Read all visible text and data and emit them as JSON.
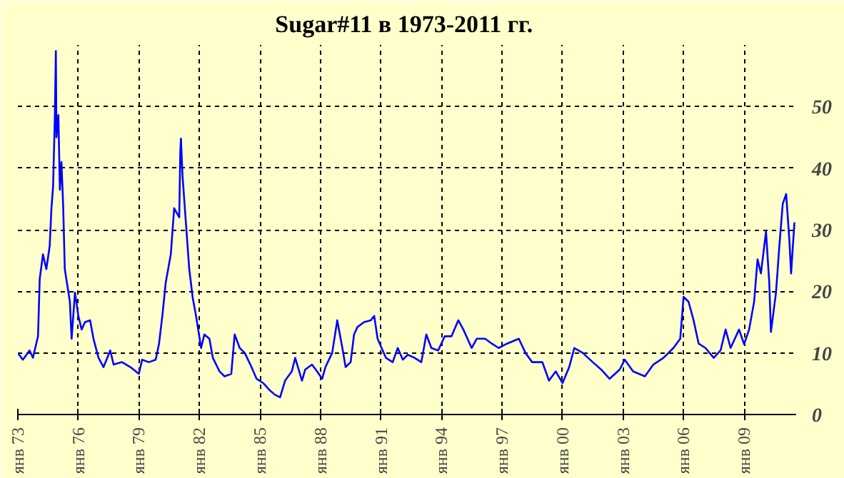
{
  "chart_data": {
    "type": "line",
    "title": "Sugar#11  в 1973-2011 гг.",
    "x": [
      "1973-01",
      "1973-04",
      "1973-08",
      "1973-10",
      "1974-01",
      "1974-02",
      "1974-04",
      "1974-06",
      "1974-08",
      "1974-09",
      "1974-10",
      "1974-11-01",
      "1974-11-20",
      "1974-12",
      "1975-01-05",
      "1975-02",
      "1975-03",
      "1975-04",
      "1975-05",
      "1975-08",
      "1975-09",
      "1975-11",
      "1976-01",
      "1976-03",
      "1976-05",
      "1976-08",
      "1976-10",
      "1977-01",
      "1977-04",
      "1977-08",
      "1977-10",
      "1978-03",
      "1978-08",
      "1979-01",
      "1979-03",
      "1979-07",
      "1979-11",
      "1980-01",
      "1980-03",
      "1980-05",
      "1980-08",
      "1980-10",
      "1981-01",
      "1981-01-20",
      "1981-02",
      "1981-03",
      "1981-05",
      "1981-07",
      "1981-09",
      "1981-11",
      "1982-02",
      "1982-04",
      "1982-07",
      "1982-09",
      "1983-01",
      "1983-04",
      "1983-08",
      "1983-10",
      "1984-01",
      "1984-04",
      "1984-08",
      "1984-11",
      "1985-03",
      "1985-07",
      "1985-10",
      "1986-01",
      "1986-04",
      "1986-08",
      "1986-10",
      "1987-02",
      "1987-04",
      "1987-08",
      "1987-11",
      "1988-02",
      "1988-04",
      "1988-08",
      "1988-11",
      "1989-02",
      "1989-04",
      "1989-07",
      "1989-09",
      "1989-11",
      "1990-03",
      "1990-07",
      "1990-09",
      "1990-11",
      "1991-02",
      "1991-04",
      "1991-08",
      "1991-11",
      "1992-02",
      "1992-05",
      "1992-09",
      "1993-01",
      "1993-04",
      "1993-07",
      "1993-11",
      "1994-03",
      "1994-07",
      "1994-11",
      "1995-02",
      "1995-07",
      "1995-10",
      "1996-03",
      "1996-07",
      "1996-11",
      "1997-04",
      "1997-11",
      "1998-03",
      "1998-07",
      "1999-01",
      "1999-05",
      "1999-09",
      "2000-01",
      "2000-05",
      "2000-08",
      "2001-01",
      "2001-07",
      "2001-12",
      "2002-05",
      "2002-11",
      "2003-02",
      "2003-07",
      "2004-02",
      "2004-07",
      "2005-01",
      "2005-07",
      "2005-11",
      "2006-01",
      "2006-04",
      "2006-07",
      "2006-10",
      "2007-02",
      "2007-07",
      "2007-11",
      "2008-02",
      "2008-05",
      "2008-10",
      "2009-01",
      "2009-04",
      "2009-07",
      "2009-09",
      "2009-11",
      "2010-02",
      "2010-04",
      "2010-05",
      "2010-08",
      "2010-10",
      "2010-12",
      "2011-02",
      "2011-04",
      "2011-05",
      "2011-07"
    ],
    "series": [
      {
        "color": "#0000ff",
        "values": [
          10,
          8.9,
          10.4,
          9.2,
          12.7,
          22,
          26,
          23.6,
          27.4,
          33.5,
          37,
          48,
          59,
          45,
          48.6,
          36.5,
          41,
          34,
          23.6,
          18.3,
          12.3,
          19.8,
          16,
          13.8,
          15,
          15.3,
          12.3,
          9.2,
          7.7,
          10.4,
          8.1,
          8.5,
          7.7,
          6.6,
          8.9,
          8.5,
          8.9,
          11.5,
          16,
          21.4,
          26,
          33.5,
          32,
          42.6,
          44.8,
          38.8,
          31.2,
          23.6,
          19,
          16,
          10.8,
          13,
          12.3,
          9.2,
          7,
          6.2,
          6.6,
          13,
          10.8,
          10,
          7.7,
          5.8,
          5.1,
          3.9,
          3.2,
          2.8,
          5.5,
          7,
          9.2,
          5.5,
          7.3,
          8.1,
          7,
          5.8,
          7.7,
          10,
          15.3,
          10.8,
          7.7,
          8.5,
          13,
          14.2,
          15,
          15.3,
          16,
          12.3,
          10.4,
          9.2,
          8.5,
          10.8,
          8.9,
          9.7,
          9.2,
          8.5,
          13,
          10.8,
          10.4,
          12.7,
          12.7,
          15.3,
          13.8,
          10.8,
          12.3,
          12.3,
          11.5,
          10.8,
          11.5,
          12.3,
          10,
          8.5,
          8.5,
          5.5,
          7,
          5.1,
          7.7,
          10.8,
          10,
          8.5,
          7.3,
          5.8,
          7.3,
          8.9,
          7,
          6.2,
          8.1,
          9.2,
          10.8,
          12.3,
          19.1,
          18.3,
          15.3,
          11.5,
          10.8,
          9.2,
          10.4,
          13.8,
          10.8,
          13.8,
          11.4,
          13.8,
          18.3,
          25.2,
          22.9,
          29.7,
          21.4,
          13.4,
          19.8,
          27.4,
          34.2,
          35.8,
          28.2,
          22.9,
          31.2
        ]
      }
    ],
    "xlim": [
      "1973-01",
      "2011-08"
    ],
    "ylim": [
      0,
      60
    ],
    "xticks": [
      {
        "value": "1973-01",
        "label": "янв 73"
      },
      {
        "value": "1976-01",
        "label": "янв 76"
      },
      {
        "value": "1979-01",
        "label": "янв 79"
      },
      {
        "value": "1982-01",
        "label": "янв 82"
      },
      {
        "value": "1985-01",
        "label": "янв 85"
      },
      {
        "value": "1988-01",
        "label": "янв 88"
      },
      {
        "value": "1991-01",
        "label": "янв 91"
      },
      {
        "value": "1994-01",
        "label": "янв 94"
      },
      {
        "value": "1997-01",
        "label": "янв 97"
      },
      {
        "value": "2000-01",
        "label": "янв 00"
      },
      {
        "value": "2003-01",
        "label": "янв 03"
      },
      {
        "value": "2006-01",
        "label": "янв 06"
      },
      {
        "value": "2009-01",
        "label": "янв 09"
      }
    ],
    "yticks": [
      0,
      10,
      20,
      30,
      40,
      50
    ],
    "grid": true,
    "line_style": "solid"
  }
}
